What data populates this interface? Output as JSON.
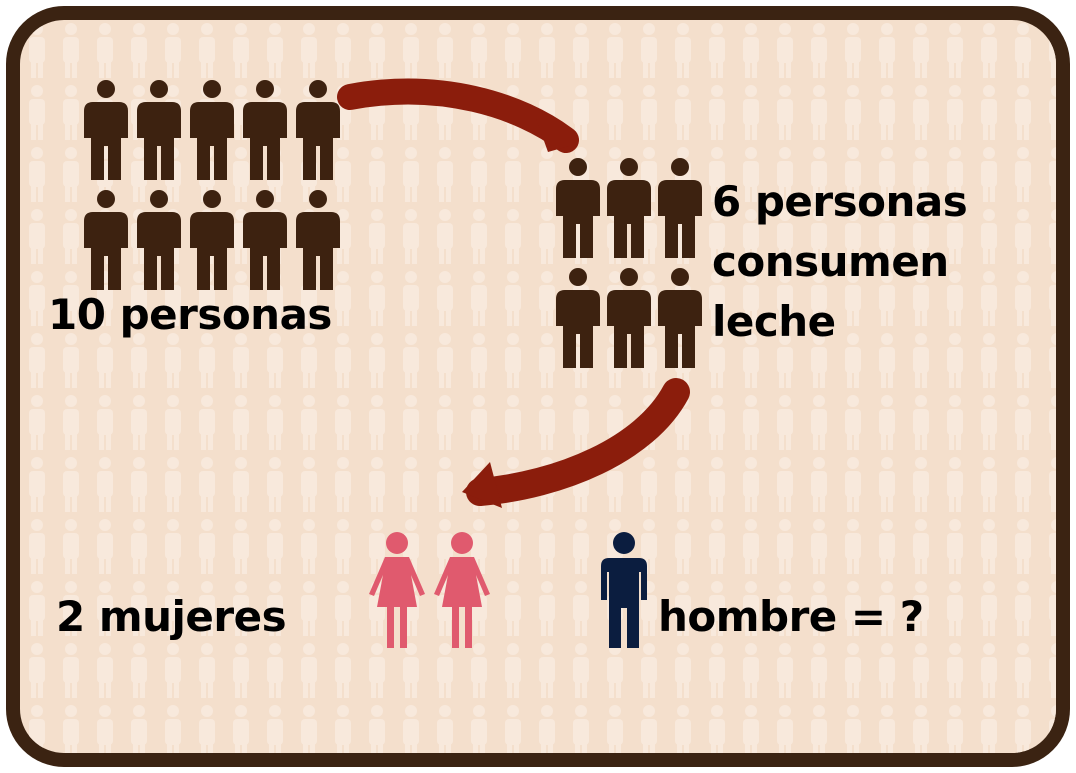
{
  "colors": {
    "border": "#3b2312",
    "background": "#f4dfcc",
    "pattern_figure": "#f8e9dc",
    "person": "#3d2210",
    "arrow": "#8b1d0c",
    "woman": "#e05a6e",
    "man": "#0b1d3f"
  },
  "icons": {
    "person": "person-icon",
    "woman": "woman-icon",
    "man": "man-icon",
    "arrow": "curved-arrow-icon"
  },
  "groups": {
    "total": {
      "count": 10,
      "label": "10 personas"
    },
    "milk": {
      "count": 6,
      "label_lines": [
        "6 personas",
        "consumen",
        "leche"
      ]
    },
    "women": {
      "count": 2,
      "label": "2 mujeres"
    },
    "men": {
      "count": 1,
      "label": "hombre = ?"
    }
  }
}
